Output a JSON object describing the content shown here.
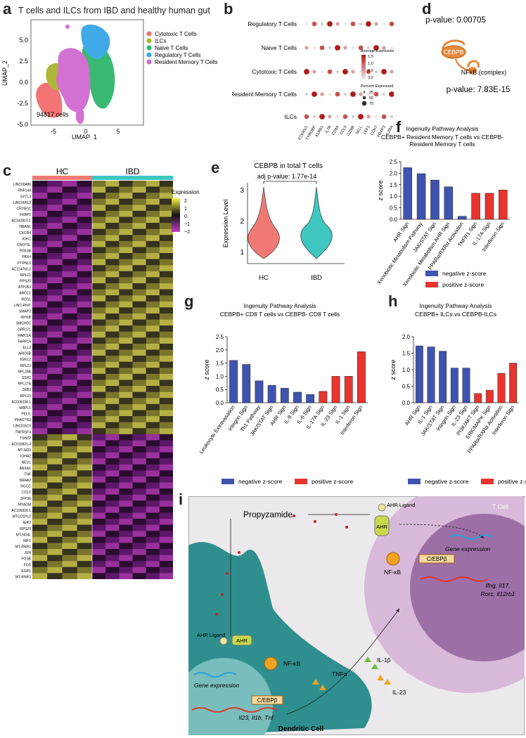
{
  "panel_labels": {
    "a": "a",
    "b": "b",
    "c": "c",
    "d": "d",
    "e": "e",
    "f": "f",
    "g": "g",
    "h": "h",
    "i": "i"
  },
  "panel_a": {
    "title": "T cells and ILCs from IBD and healthy human gut",
    "xlabel": "UMAP_1",
    "ylabel": "UMAP_2",
    "xticks": [
      "-5",
      "0",
      "5"
    ],
    "yticks": [
      "5.0",
      "2.5",
      "0.0",
      "-2.5",
      "-5.0"
    ],
    "cells_label": "94817 cells",
    "legend": [
      {
        "name": "Cytotoxic T Cells",
        "color": "#f26d6d"
      },
      {
        "name": "ILCs",
        "color": "#a9b42e"
      },
      {
        "name": "Naive T Cells",
        "color": "#2fb66a"
      },
      {
        "name": "Regulatory T Cells",
        "color": "#36a6e8"
      },
      {
        "name": "Resident Memory T Cells",
        "color": "#d06ad0"
      }
    ]
  },
  "panel_b": {
    "rows": [
      "Regulatory T Cells",
      "Naive T Cells",
      "Cytotoxic T Cells",
      "Resident Memory T Cells",
      "ILCs"
    ],
    "genes": [
      "FCER1G",
      "TYROBP",
      "KLRB1",
      "IL7R",
      "CD8A",
      "CCL5",
      "GZMB",
      "SELL",
      "LEF1",
      "CCR7",
      "FOXP3",
      "IL2RA"
    ],
    "legend_expr_title": "Average Expression",
    "legend_expr_ticks": [
      "1.5",
      "1.0",
      "0.5",
      "0.0"
    ],
    "legend_pct_title": "Percent Expressed",
    "legend_pct_ticks": [
      "25",
      "50",
      "75"
    ]
  },
  "panel_c": {
    "groups": [
      {
        "name": "HC",
        "color": "#f07a73"
      },
      {
        "name": "IBD",
        "color": "#3ec7c1"
      }
    ],
    "legend_title": "Expression",
    "legend_ticks": [
      "2",
      "1",
      "0",
      "−1",
      "−2"
    ],
    "genes": [
      "LINC00486",
      "RNF144",
      "SYTL3",
      "LINC00513",
      "CRYBG1",
      "FKBP5",
      "AC243919.1",
      "NBAN1",
      "CXCR4",
      "IGKC",
      "CNOT6L",
      "PDE3B",
      "PBX4",
      "PTPN13",
      "AC114760.2",
      "RPL21",
      "RPS20",
      "ATP1B3",
      "ABCC1",
      "RGS1",
      "LINC-PINT",
      "SMAP2",
      "IDH1B",
      "SMCHD1",
      "GPR171",
      "RAB11A",
      "FARP16",
      "ELL2",
      "ARID5B",
      "IGKC2",
      "RPL22",
      "RPL29A",
      "SSH2",
      "RPL27A",
      "ZEB2",
      "RPL23",
      "AC006038.1",
      "MRPL1",
      "PELI1",
      "PHACTR2",
      "LINC01619",
      "TNFRSF4",
      "TSHZ2",
      "AC016831.4",
      "MT-ND3",
      "IGHA2",
      "NEU1",
      "ANXA1",
      "TNF",
      "NR4A2",
      "RGCC",
      "CCL5",
      "ZFP36",
      "MYADM",
      "AC109326.1",
      "MTCO1P12",
      "IER2",
      "RPS29",
      "MT-ND4L",
      "IRF1",
      "MT-RNR1",
      "JUN",
      "FOSB",
      "FOS",
      "EGR1",
      "MT-RNR2"
    ]
  },
  "panel_d": {
    "pvalue_top": "p-value: 0.00705",
    "pvalue_bottom": "p-value: 7.83E-15",
    "node1": "CEBPB",
    "node2": "NFkB (complex)"
  },
  "panel_e": {
    "title": "CEBPB in total T cells",
    "adj": "adj p-value: 1.77e-14",
    "ylabel": "Expression Level",
    "yticks": [
      "3",
      "2",
      "1"
    ],
    "categories": [
      "HC",
      "IBD"
    ],
    "colors": [
      "#f07a73",
      "#3ec7c1"
    ]
  },
  "legend_labels": {
    "neg": "negative z-score",
    "pos": "positive z-score"
  },
  "colors": {
    "neg": "#3f53b0",
    "pos": "#e8342f"
  },
  "chart_data": [
    {
      "id": "f",
      "type": "bar",
      "title": "Ingenuity Pathway Analysis",
      "subtitle": "CEBPB+ Resident Memory T cells vs CEBPB- Resident Memory T cells",
      "ylabel": "z score",
      "ylim": [
        0,
        2.5
      ],
      "yticks": [
        "0.0",
        "0.5",
        "1.0",
        "1.5",
        "2.0",
        "2.5"
      ],
      "categories": [
        "AHR Sign",
        "Xenobiotic Metabolism Pathway",
        "JAK/STAT Sign",
        "Xenobiotic Metabolism AHR Sign",
        "PPARα/RXRα Activation",
        "TNFR1 Sign",
        "IL-17A Sign",
        "Interferon Sign"
      ],
      "values": [
        2.24,
        1.98,
        1.7,
        1.41,
        0.13,
        1.13,
        1.13,
        1.27
      ],
      "signs": [
        "neg",
        "neg",
        "neg",
        "neg",
        "neg",
        "pos",
        "pos",
        "pos"
      ]
    },
    {
      "id": "g",
      "type": "bar",
      "title": "Ingenuity Pathway Analysis",
      "subtitle": "CEBPB+ CD8 T cells vs CEBPB- CD8 T cells",
      "ylabel": "z score",
      "ylim": [
        0,
        2.5
      ],
      "yticks": [
        "0.0",
        "0.5",
        "1.0",
        "1.5",
        "2.0",
        "2.5"
      ],
      "categories": [
        "Leukocyte Extravasation",
        "Integrin Sign",
        "Th1 Pathway",
        "JAK/STAT Sign",
        "AHR Sign",
        "IL-8 Sign",
        "IL-6 Sign",
        "IL-17A Sign",
        "IL-23 Sign",
        "IL-1 Sign",
        "Interferon Sign"
      ],
      "values": [
        1.6,
        1.45,
        0.83,
        0.66,
        0.55,
        0.4,
        0.31,
        0.43,
        1.0,
        1.0,
        1.93
      ],
      "signs": [
        "neg",
        "neg",
        "neg",
        "neg",
        "neg",
        "neg",
        "neg",
        "pos",
        "pos",
        "pos",
        "pos"
      ]
    },
    {
      "id": "h",
      "type": "bar",
      "title": "Ingenuity Pathway Analysis",
      "subtitle": "CEBPB+ ILCs vs CEBPB-ILCs",
      "ylabel": "z score",
      "ylim": [
        0,
        2.0
      ],
      "yticks": [
        "0.0",
        "0.5",
        "1.0",
        "1.5",
        "2.0"
      ],
      "categories": [
        "AHR Sign",
        "IL-1 Sign",
        "JAK/STAT Sign",
        "Integrin Sign",
        "IL-23 Sign",
        "PI3K/AKT Sign",
        "ERK/MAPK Sign",
        "PPARα/RXRα Activation",
        "Interferon Sign"
      ],
      "values": [
        1.72,
        1.69,
        1.56,
        1.05,
        1.05,
        0.28,
        0.38,
        0.89,
        1.2
      ],
      "signs": [
        "neg",
        "neg",
        "neg",
        "neg",
        "neg",
        "pos",
        "pos",
        "pos",
        "pos"
      ]
    }
  ],
  "panel_i": {
    "drug": "Propyzamide",
    "tcell": "T Cell",
    "dc": "Dendritic Cell",
    "ahr_ligand": "AHR\nLigand",
    "ahr": "AHR",
    "nfkb": "NF-κB",
    "cebp": "C/EBPβ",
    "gene_expr": "Gene expression",
    "t_targets_1": "Ifng, Il17,",
    "t_targets_2": "Rorc, Il12rb1",
    "dc_targets": "Il23, Il1b, Tnf",
    "tnfa": "TNFα",
    "il1b": "IL-1β",
    "il23": "IL-23"
  }
}
